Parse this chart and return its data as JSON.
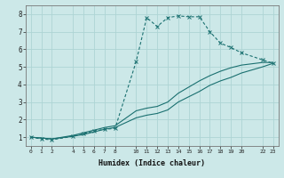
{
  "xlabel": "Humidex (Indice chaleur)",
  "bg_color": "#cce8e8",
  "grid_color": "#aed4d4",
  "line_color": "#1a7070",
  "line1_x": [
    0,
    1,
    2,
    4,
    5,
    6,
    7,
    8,
    10,
    11,
    12,
    13,
    14,
    15,
    16,
    17,
    18,
    19,
    20,
    22,
    23
  ],
  "line1_y": [
    1.0,
    0.9,
    0.85,
    1.05,
    1.2,
    1.35,
    1.45,
    1.5,
    5.3,
    7.8,
    7.3,
    7.8,
    7.9,
    7.85,
    7.85,
    7.0,
    6.35,
    6.1,
    5.8,
    5.4,
    5.2
  ],
  "line2_x": [
    0,
    1,
    2,
    4,
    5,
    6,
    7,
    8,
    10,
    11,
    12,
    13,
    14,
    16,
    17,
    18,
    19,
    20,
    22,
    23
  ],
  "line2_y": [
    1.0,
    0.95,
    0.9,
    1.1,
    1.25,
    1.4,
    1.55,
    1.65,
    2.5,
    2.65,
    2.75,
    3.0,
    3.5,
    4.2,
    4.5,
    4.75,
    4.95,
    5.1,
    5.25,
    5.25
  ],
  "line3_x": [
    0,
    1,
    2,
    4,
    5,
    6,
    7,
    8,
    10,
    11,
    12,
    13,
    14,
    16,
    17,
    18,
    19,
    20,
    22,
    23
  ],
  "line3_y": [
    1.0,
    0.95,
    0.9,
    1.05,
    1.15,
    1.3,
    1.45,
    1.55,
    2.1,
    2.25,
    2.35,
    2.55,
    3.0,
    3.6,
    3.95,
    4.2,
    4.4,
    4.65,
    5.0,
    5.2
  ],
  "xlim": [
    -0.5,
    23.5
  ],
  "ylim": [
    0.5,
    8.5
  ],
  "xticks": [
    0,
    1,
    2,
    4,
    5,
    6,
    7,
    8,
    10,
    11,
    12,
    13,
    14,
    15,
    16,
    17,
    18,
    19,
    20,
    22,
    23
  ],
  "yticks": [
    1,
    2,
    3,
    4,
    5,
    6,
    7,
    8
  ]
}
